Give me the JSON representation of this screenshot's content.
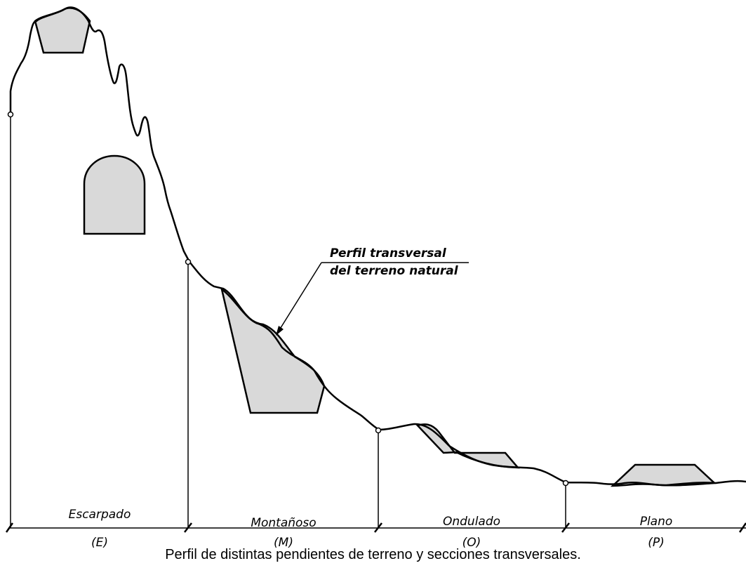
{
  "diagram": {
    "annotation": {
      "line1": "Perfil transversal",
      "line2": "del terreno natural"
    },
    "segments": [
      {
        "name": "Escarpado",
        "code": "(E)"
      },
      {
        "name": "Montañoso",
        "code": "(M)"
      },
      {
        "name": "Ondulado",
        "code": "(O)"
      },
      {
        "name": "Plano",
        "code": "(P)"
      }
    ],
    "colors": {
      "fill": "#d9d9d9",
      "line": "#000000"
    }
  },
  "caption": "Perfil de distintas pendientes de terreno y secciones transversales."
}
